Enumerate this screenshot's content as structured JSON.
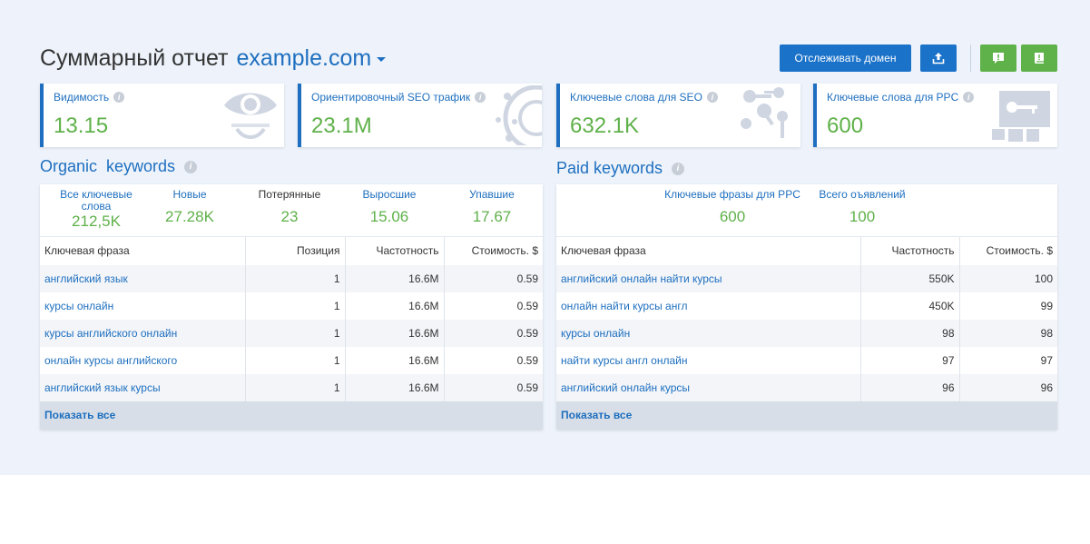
{
  "header": {
    "title": "Суммарный отчет",
    "domain": "example.com",
    "track_button": "Отслеживать домен"
  },
  "icons": {
    "export": "upload-icon",
    "feedback": "exclamation-comment-icon",
    "manual": "book-icon",
    "caret": "caret-down-icon"
  },
  "colors": {
    "accent": "#1e6fbf",
    "value": "#5fb14a",
    "button": "#1a72c9",
    "green_button": "#5fb14a"
  },
  "cards": [
    {
      "label": "Видимость",
      "value": "13.15",
      "icon": "eye-icon"
    },
    {
      "label": "Ориентировочный SEO трафик",
      "value": "23.1M",
      "icon": "orbit-icon"
    },
    {
      "label": "Ключевые слова для SEO",
      "value": "632.1K",
      "icon": "keys-icon"
    },
    {
      "label": "Ключевые слова для PPC",
      "value": "600",
      "icon": "key-block-icon"
    }
  ],
  "organic": {
    "title": "Organic  keywords",
    "stats": [
      {
        "label": "Все ключевые слова",
        "value": "212,5K"
      },
      {
        "label": "Новые",
        "value": "27.28K"
      },
      {
        "label": "Потерянные",
        "value": "23"
      },
      {
        "label": "Выросшие",
        "value": "15.06"
      },
      {
        "label": "Упавшие",
        "value": "17.67"
      }
    ],
    "columns": [
      "Ключевая фраза",
      "Позиция",
      "Частотность",
      "Стоимость. $"
    ],
    "rows": [
      [
        "английский язык",
        "1",
        "16.6M",
        "0.59"
      ],
      [
        "курсы онлайн",
        "1",
        "16.6M",
        "0.59"
      ],
      [
        "курсы английского онлайн",
        "1",
        "16.6M",
        "0.59"
      ],
      [
        "онлайн курсы английского",
        "1",
        "16.6M",
        "0.59"
      ],
      [
        "английский язык курсы",
        "1",
        "16.6M",
        "0.59"
      ]
    ],
    "show_all": "Показать все"
  },
  "paid": {
    "title": "Paid keywords",
    "stats": [
      {
        "label": "Ключевые фразы для PPC",
        "value": "600"
      },
      {
        "label": "Всего оъявлений",
        "value": "100"
      }
    ],
    "columns": [
      "Ключевая фраза",
      "Частотность",
      "Стоимость. $"
    ],
    "rows": [
      [
        "английский онлайн найти курсы",
        "550K",
        "100"
      ],
      [
        "онлайн найти курсы англ",
        "450K",
        "99"
      ],
      [
        "курсы онлайн",
        "98",
        "98"
      ],
      [
        "найти курсы англ онлайн",
        "97",
        "97"
      ],
      [
        "английский онлайн курсы",
        "96",
        "96"
      ]
    ],
    "show_all": "Показать все"
  }
}
